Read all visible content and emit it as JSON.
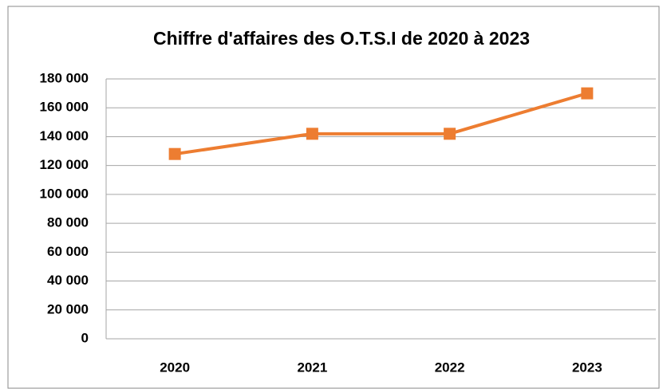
{
  "chart_data": {
    "type": "line",
    "title": "Chiffre d'affaires des O.T.S.I de 2020 à 2023",
    "categories": [
      "2020",
      "2021",
      "2022",
      "2023"
    ],
    "values": [
      128000,
      142000,
      142000,
      170000
    ],
    "color": "#ed7d31",
    "ylim": [
      0,
      180000
    ],
    "yticks": [
      0,
      {
        "value": 20000,
        "label": "20 000"
      },
      {
        "value": 40000,
        "label": "40 000"
      },
      {
        "value": 60000,
        "label": "60 000"
      },
      {
        "value": 80000,
        "label": "80 000"
      },
      {
        "value": 100000,
        "label": "100 000"
      },
      {
        "value": 120000,
        "label": "120 000"
      },
      {
        "value": 140000,
        "label": "140 000"
      },
      {
        "value": 160000,
        "label": "160 000"
      },
      {
        "value": 180000,
        "label": "180 000"
      }
    ],
    "grid": true,
    "marker": "square"
  }
}
